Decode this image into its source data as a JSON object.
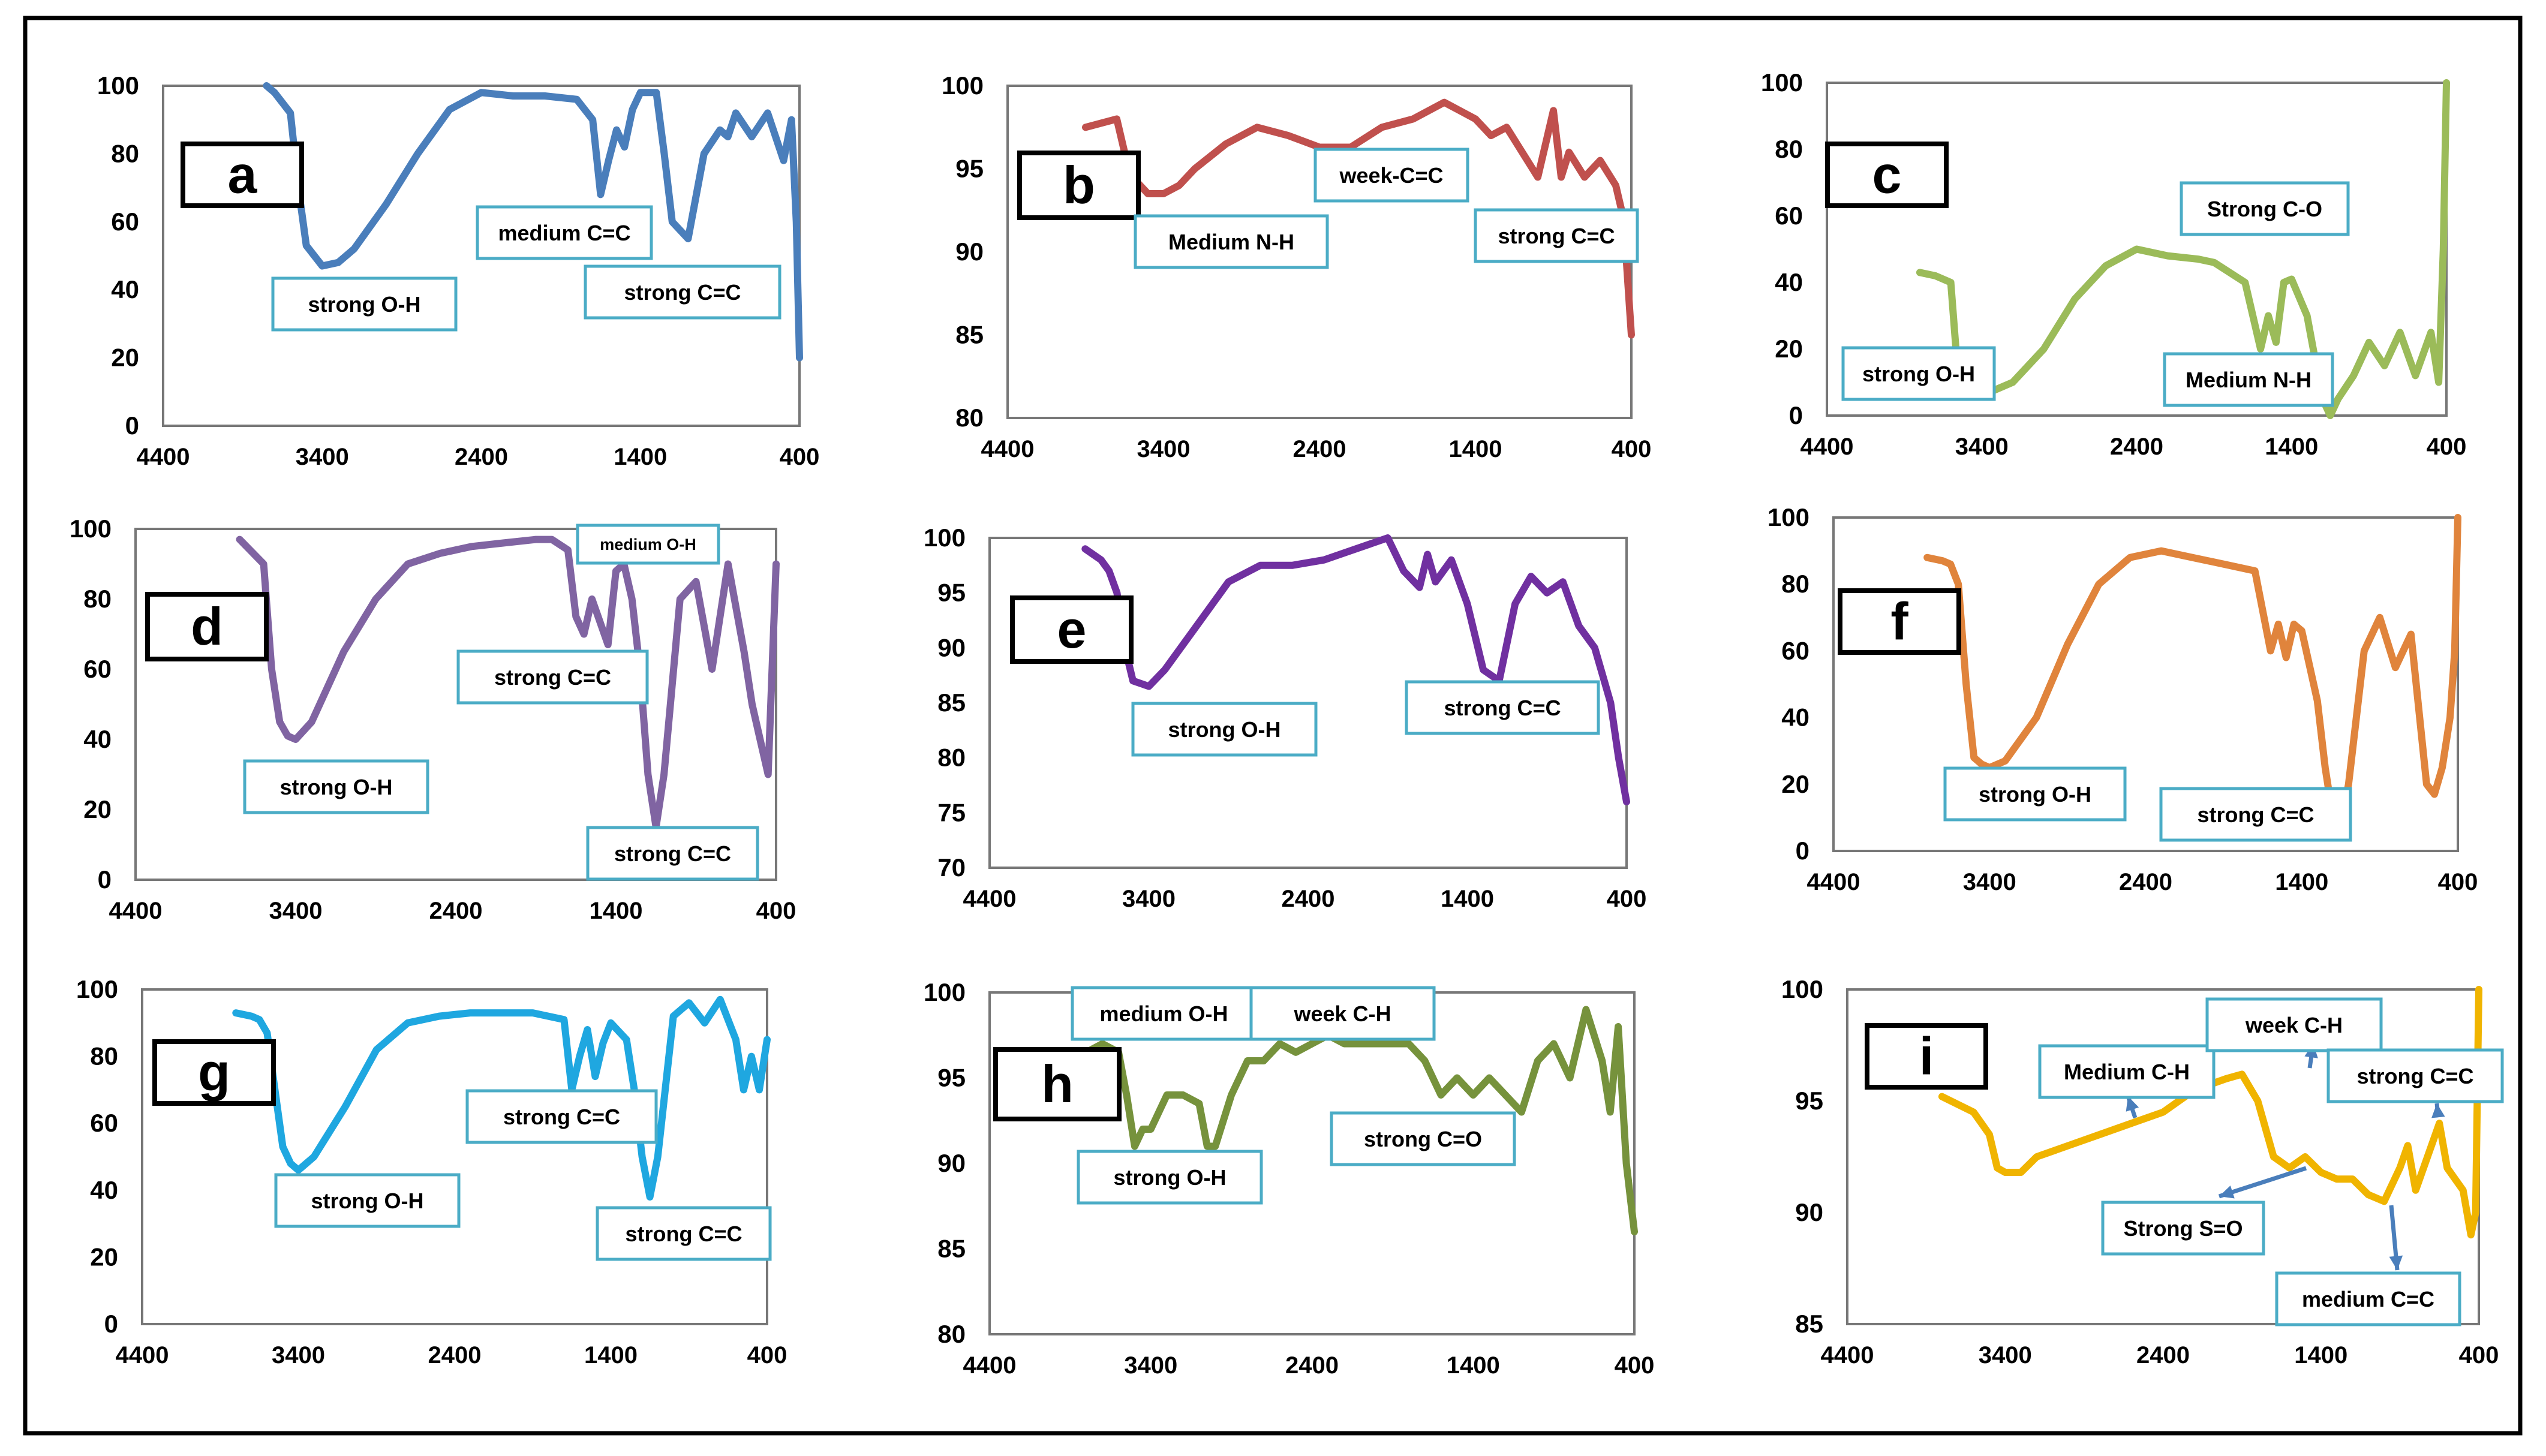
{
  "figure": {
    "title": ""
  },
  "chart_data": [
    {
      "panel": "a",
      "type": "line",
      "color": "#4A7EBB",
      "ylim": [
        0,
        100
      ],
      "y_ticks": [
        "0",
        "20",
        "40",
        "60",
        "80",
        "100"
      ],
      "x_ticks": [
        "4400",
        "3400",
        "2400",
        "1400",
        "400"
      ],
      "xlim": [
        4400,
        400
      ],
      "annotations": [
        "strong  O-H",
        "medium  C=C",
        "strong C=C"
      ],
      "series": [
        {
          "name": "a",
          "x": [
            3750,
            3700,
            3600,
            3550,
            3500,
            3450,
            3400,
            3300,
            3200,
            3000,
            2800,
            2600,
            2400,
            2200,
            2000,
            1800,
            1700,
            1650,
            1600,
            1550,
            1500,
            1450,
            1400,
            1300,
            1250,
            1200,
            1100,
            1000,
            900,
            850,
            800,
            700,
            600,
            500,
            450,
            420,
            400
          ],
          "y": [
            100,
            98,
            92,
            70,
            53,
            50,
            47,
            48,
            52,
            65,
            80,
            93,
            98,
            97,
            97,
            96,
            90,
            68,
            78,
            87,
            82,
            93,
            98,
            98,
            80,
            60,
            55,
            80,
            87,
            85,
            92,
            85,
            92,
            78,
            90,
            60,
            20
          ]
        }
      ]
    },
    {
      "panel": "b",
      "type": "line",
      "color": "#C0504D",
      "ylim": [
        80,
        100
      ],
      "y_ticks": [
        "80",
        "85",
        "90",
        "95",
        "100"
      ],
      "x_ticks": [
        "4400",
        "3400",
        "2400",
        "1400",
        "400"
      ],
      "xlim": [
        4400,
        400
      ],
      "annotations": [
        "Medium N-H",
        "week-C=C",
        "strong C=C"
      ],
      "series": [
        {
          "name": "b",
          "x": [
            3900,
            3700,
            3650,
            3600,
            3500,
            3400,
            3300,
            3200,
            3000,
            2800,
            2600,
            2400,
            2200,
            2000,
            1800,
            1600,
            1500,
            1400,
            1300,
            1200,
            1000,
            900,
            850,
            800,
            700,
            600,
            500,
            450,
            400
          ],
          "y": [
            97.5,
            98,
            96,
            94.5,
            93.5,
            93.5,
            94,
            95,
            96.5,
            97.5,
            97,
            96.3,
            96.3,
            97.5,
            98,
            99,
            98.5,
            98,
            97,
            97.5,
            94.5,
            98.5,
            94.5,
            96,
            94.5,
            95.5,
            94,
            92,
            85
          ]
        }
      ]
    },
    {
      "panel": "c",
      "type": "line",
      "color": "#9BBB59",
      "ylim": [
        0,
        100
      ],
      "y_ticks": [
        "0",
        "20",
        "40",
        "60",
        "80",
        "100"
      ],
      "x_ticks": [
        "4400",
        "3400",
        "2400",
        "1400",
        "400"
      ],
      "xlim": [
        4400,
        400
      ],
      "annotations": [
        "strong  O-H",
        "Strong C-O",
        "Medium N-H"
      ],
      "series": [
        {
          "name": "c",
          "x": [
            3800,
            3700,
            3600,
            3550,
            3500,
            3400,
            3200,
            3000,
            2800,
            2600,
            2400,
            2200,
            2000,
            1900,
            1700,
            1600,
            1550,
            1500,
            1450,
            1400,
            1300,
            1200,
            1150,
            1100,
            1000,
            900,
            800,
            700,
            600,
            500,
            450,
            420,
            400
          ],
          "y": [
            43,
            42,
            40,
            10,
            7,
            6,
            10,
            20,
            35,
            45,
            50,
            48,
            47,
            46,
            40,
            20,
            30,
            22,
            40,
            41,
            30,
            5,
            0,
            5,
            12,
            22,
            15,
            25,
            12,
            25,
            10,
            50,
            100
          ]
        }
      ]
    },
    {
      "panel": "d",
      "type": "line",
      "color": "#8064A2",
      "ylim": [
        0,
        100
      ],
      "y_ticks": [
        "0",
        "20",
        "40",
        "60",
        "80",
        "100"
      ],
      "x_ticks": [
        "4400",
        "3400",
        "2400",
        "1400",
        "400"
      ],
      "xlim": [
        4400,
        400
      ],
      "annotations": [
        "strong  O-H",
        "strong C=C",
        "medium O-H",
        "strong C=C"
      ],
      "series": [
        {
          "name": "d",
          "x": [
            3750,
            3600,
            3550,
            3500,
            3450,
            3400,
            3300,
            3100,
            2900,
            2700,
            2500,
            2300,
            2100,
            1900,
            1800,
            1700,
            1650,
            1600,
            1550,
            1450,
            1400,
            1350,
            1300,
            1250,
            1200,
            1150,
            1100,
            1000,
            900,
            800,
            700,
            600,
            550,
            500,
            450,
            400
          ],
          "y": [
            97,
            90,
            60,
            45,
            41,
            40,
            45,
            65,
            80,
            90,
            93,
            95,
            96,
            97,
            97,
            94,
            75,
            70,
            80,
            67,
            88,
            90,
            80,
            60,
            30,
            15,
            30,
            80,
            85,
            60,
            90,
            65,
            50,
            40,
            30,
            90
          ]
        }
      ]
    },
    {
      "panel": "e",
      "type": "line",
      "color": "#7030A0",
      "ylim": [
        70,
        100
      ],
      "y_ticks": [
        "70",
        "75",
        "80",
        "85",
        "90",
        "95",
        "100"
      ],
      "x_ticks": [
        "4400",
        "3400",
        "2400",
        "1400",
        "400"
      ],
      "xlim": [
        4400,
        400
      ],
      "annotations": [
        "strong  O-H",
        "strong C=C"
      ],
      "series": [
        {
          "name": "e",
          "x": [
            3800,
            3700,
            3650,
            3600,
            3550,
            3500,
            3400,
            3300,
            3100,
            2900,
            2700,
            2500,
            2300,
            2100,
            1900,
            1800,
            1700,
            1650,
            1600,
            1500,
            1400,
            1300,
            1200,
            1100,
            1000,
            900,
            800,
            700,
            600,
            500,
            450,
            400
          ],
          "y": [
            99,
            98,
            97,
            95,
            90,
            87,
            86.5,
            88,
            92,
            96,
            97.5,
            97.5,
            98,
            99,
            100,
            97,
            95.5,
            98.5,
            96,
            98,
            94,
            88,
            87,
            94,
            96.5,
            95,
            96,
            92,
            90,
            85,
            80,
            76
          ]
        }
      ]
    },
    {
      "panel": "f",
      "type": "line",
      "color": "#E0843C",
      "ylim": [
        0,
        100
      ],
      "y_ticks": [
        "0",
        "20",
        "40",
        "60",
        "80",
        "100"
      ],
      "x_ticks": [
        "4400",
        "3400",
        "2400",
        "1400",
        "400"
      ],
      "xlim": [
        4400,
        400
      ],
      "annotations": [
        "strong  O-H",
        "strong C=C"
      ],
      "series": [
        {
          "name": "f",
          "x": [
            3800,
            3700,
            3650,
            3600,
            3550,
            3500,
            3450,
            3400,
            3300,
            3100,
            2900,
            2700,
            2500,
            2300,
            2100,
            1900,
            1700,
            1600,
            1550,
            1500,
            1450,
            1400,
            1300,
            1250,
            1200,
            1150,
            1100,
            1000,
            900,
            800,
            700,
            600,
            550,
            500,
            450,
            420,
            400
          ],
          "y": [
            88,
            87,
            86,
            80,
            50,
            28,
            26,
            25,
            27,
            40,
            62,
            80,
            88,
            90,
            88,
            86,
            84,
            60,
            68,
            58,
            68,
            66,
            45,
            25,
            10,
            8,
            20,
            60,
            70,
            55,
            65,
            20,
            17,
            25,
            40,
            60,
            100
          ]
        }
      ]
    },
    {
      "panel": "g",
      "type": "line",
      "color": "#1FA7E0",
      "ylim": [
        0,
        100
      ],
      "y_ticks": [
        "0",
        "20",
        "40",
        "60",
        "80",
        "100"
      ],
      "x_ticks": [
        "4400",
        "3400",
        "2400",
        "1400",
        "400"
      ],
      "xlim": [
        4400,
        400
      ],
      "annotations": [
        "strong  O-H",
        "strong C=C",
        "strong C=C"
      ],
      "series": [
        {
          "name": "g",
          "x": [
            3800,
            3700,
            3650,
            3600,
            3550,
            3500,
            3450,
            3400,
            3300,
            3100,
            2900,
            2700,
            2500,
            2300,
            2100,
            1900,
            1700,
            1650,
            1600,
            1550,
            1500,
            1450,
            1400,
            1300,
            1250,
            1200,
            1150,
            1100,
            1000,
            900,
            800,
            700,
            600,
            550,
            500,
            450,
            400
          ],
          "y": [
            93,
            92,
            91,
            87,
            70,
            53,
            48,
            46,
            50,
            65,
            82,
            90,
            92,
            93,
            93,
            93,
            91,
            70,
            80,
            88,
            74,
            84,
            90,
            85,
            70,
            50,
            38,
            50,
            92,
            96,
            90,
            97,
            85,
            70,
            80,
            70,
            85
          ]
        }
      ]
    },
    {
      "panel": "h",
      "type": "line",
      "color": "#76923C",
      "ylim": [
        80,
        100
      ],
      "y_ticks": [
        "80",
        "85",
        "90",
        "95",
        "100"
      ],
      "x_ticks": [
        "4400",
        "3400",
        "2400",
        "1400",
        "400"
      ],
      "xlim": [
        4400,
        400
      ],
      "annotations": [
        "medium O-H",
        "week  C-H",
        "strong  O-H",
        "strong   C=O"
      ],
      "series": [
        {
          "name": "h",
          "x": [
            3800,
            3700,
            3600,
            3550,
            3500,
            3450,
            3400,
            3300,
            3200,
            3100,
            3050,
            3000,
            2900,
            2800,
            2700,
            2600,
            2500,
            2400,
            2300,
            2200,
            2100,
            2000,
            1900,
            1800,
            1700,
            1600,
            1500,
            1400,
            1300,
            1200,
            1100,
            1000,
            900,
            800,
            700,
            600,
            550,
            500,
            450,
            400
          ],
          "y": [
            96.5,
            97,
            96.5,
            94,
            91,
            92,
            92,
            94,
            94,
            93.5,
            91,
            91,
            94,
            96,
            96,
            97,
            96.5,
            97,
            97.5,
            97,
            97,
            97,
            97,
            97,
            96,
            94,
            95,
            94,
            95,
            94,
            93,
            96,
            97,
            95,
            99,
            96,
            93,
            98,
            90,
            86
          ]
        }
      ]
    },
    {
      "panel": "i",
      "type": "line",
      "color": "#F0B400",
      "ylim": [
        85,
        100
      ],
      "y_ticks": [
        "85",
        "90",
        "95",
        "100"
      ],
      "x_ticks": [
        "4400",
        "3400",
        "2400",
        "1400",
        "400"
      ],
      "xlim": [
        4400,
        400
      ],
      "annotations": [
        "Medium C-H",
        "week  C-H",
        "strong C=C",
        "Strong S=O",
        "medium C=C"
      ],
      "series": [
        {
          "name": "i",
          "x": [
            3800,
            3600,
            3500,
            3450,
            3400,
            3300,
            3200,
            3000,
            2800,
            2600,
            2400,
            2200,
            2000,
            1900,
            1800,
            1700,
            1600,
            1500,
            1400,
            1300,
            1200,
            1100,
            1000,
            900,
            850,
            800,
            700,
            650,
            600,
            500,
            450,
            420,
            400
          ],
          "y": [
            95.2,
            94.5,
            93.5,
            92,
            91.8,
            91.8,
            92.5,
            93,
            93.5,
            94,
            94.5,
            95.5,
            96,
            96.2,
            95,
            92.5,
            92,
            92.5,
            91.8,
            91.5,
            91.5,
            90.8,
            90.5,
            92,
            93,
            91,
            93,
            94,
            92,
            91,
            89,
            90,
            100
          ]
        }
      ]
    }
  ]
}
